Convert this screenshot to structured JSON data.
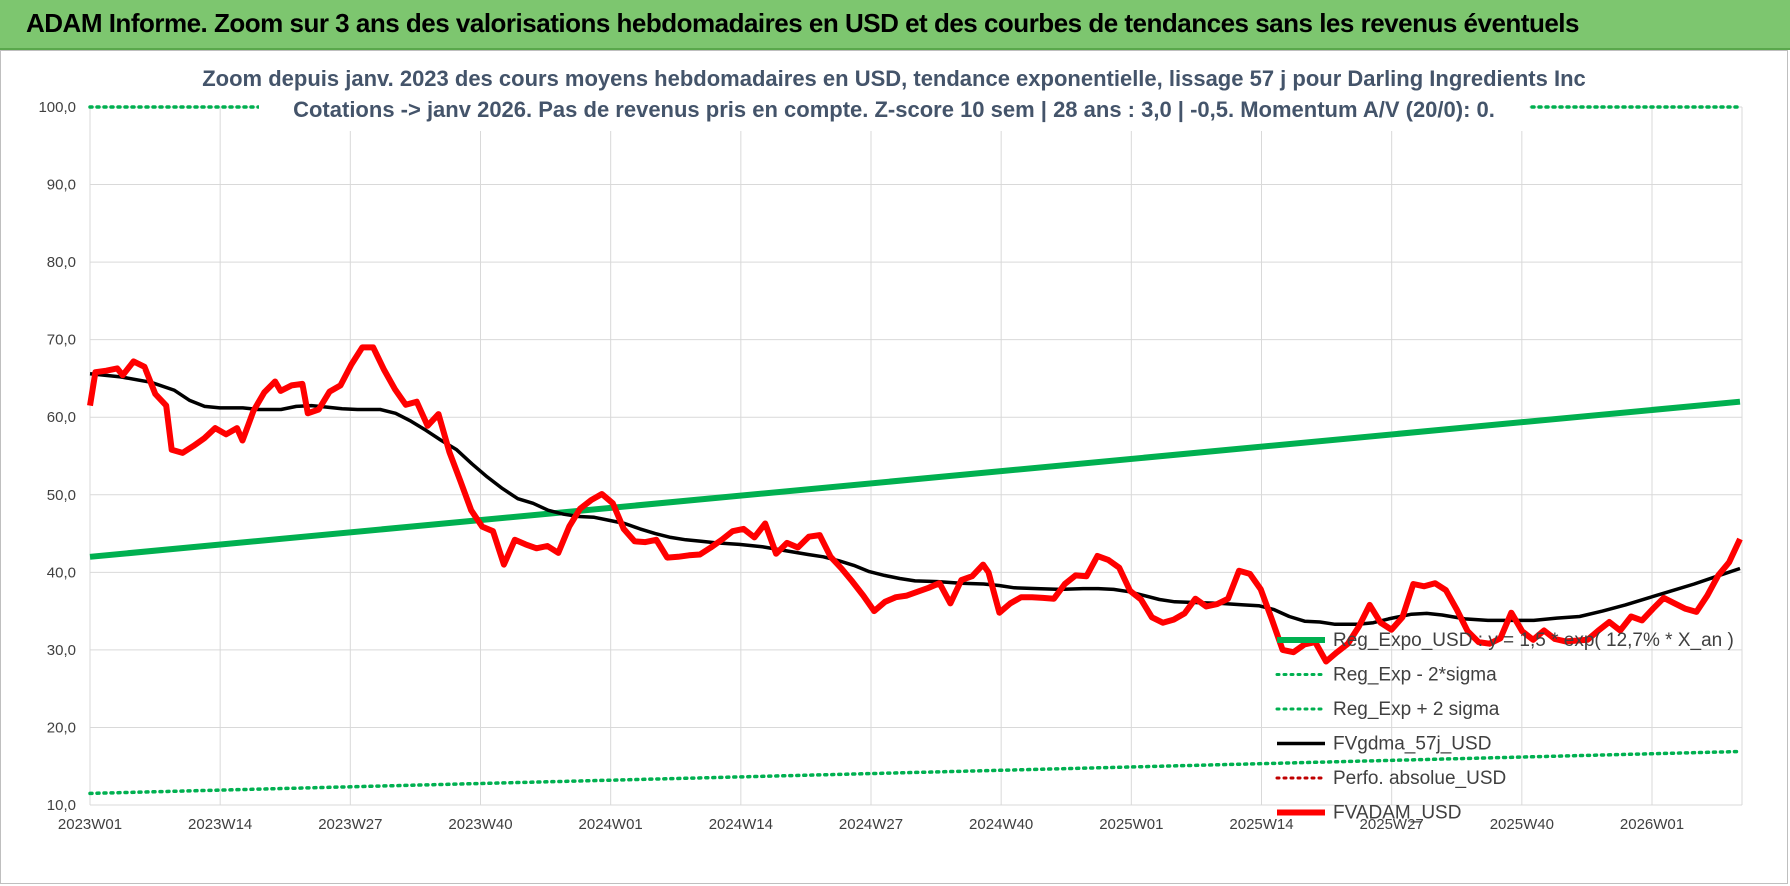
{
  "header": {
    "title": "ADAM Informe. Zoom sur 3 ans des valorisations hebdomadaires en USD et des courbes de tendances sans les revenus éventuels"
  },
  "chart_data": {
    "type": "line",
    "title": "Zoom depuis janv. 2023 des cours moyens hebdomadaires en USD, tendance exponentielle, lissage 57 j pour Darling Ingredients Inc",
    "subtitle": "Cotations -> janv 2026. Pas de revenus pris en compte. Z-score 10 sem | 28 ans : 3,0 | -0,5. Momentum A/V (20/0): 0.",
    "xlabel": "",
    "ylabel": "",
    "ylim": [
      10,
      100
    ],
    "yticks": [
      "100,0",
      "90,0",
      "80,0",
      "70,0",
      "60,0",
      "50,0",
      "40,0",
      "30,0",
      "20,0",
      "10,0"
    ],
    "xticks": [
      "2023W01",
      "2023W14",
      "2023W27",
      "2023W40",
      "2024W01",
      "2024W14",
      "2024W27",
      "2024W40",
      "2025W01",
      "2025W14",
      "2025W27",
      "2025W40",
      "2026W01"
    ],
    "grid": true,
    "legend_position": "bottom-right",
    "n_weeks": 162,
    "series": [
      {
        "name": "Reg_Expo_USD : y = 1,5 * exp( 12,7% * X_an )",
        "color": "#00b050",
        "style": "solid-thick",
        "points": [
          [
            0,
            42.0
          ],
          [
            161,
            62.0
          ]
        ]
      },
      {
        "name": "Reg_Exp - 2*sigma",
        "color": "#00b050",
        "style": "dotted",
        "points": [
          [
            0,
            11.5
          ],
          [
            161,
            16.9
          ]
        ]
      },
      {
        "name": "Reg_Exp + 2 sigma",
        "color": "#00b050",
        "style": "dotted",
        "points": [
          [
            0,
            100.0
          ],
          [
            161,
            100.0
          ]
        ]
      },
      {
        "name": "FVgdma_57j_USD",
        "color": "#000000",
        "style": "solid",
        "points": [
          [
            0,
            65.6
          ],
          [
            4,
            65.2
          ],
          [
            8,
            64.5
          ],
          [
            11,
            63.5
          ],
          [
            13,
            62.2
          ],
          [
            15,
            61.4
          ],
          [
            17,
            61.2
          ],
          [
            20,
            61.2
          ],
          [
            22,
            61.0
          ],
          [
            25,
            61.0
          ],
          [
            27,
            61.4
          ],
          [
            29,
            61.5
          ],
          [
            31,
            61.3
          ],
          [
            33,
            61.1
          ],
          [
            35,
            61.0
          ],
          [
            38,
            61.0
          ],
          [
            40,
            60.5
          ],
          [
            42,
            59.5
          ],
          [
            44,
            58.3
          ],
          [
            46,
            57.0
          ],
          [
            48,
            55.8
          ],
          [
            50,
            54.0
          ],
          [
            52,
            52.3
          ],
          [
            54,
            50.8
          ],
          [
            56,
            49.5
          ],
          [
            58,
            48.9
          ],
          [
            60,
            48.0
          ],
          [
            62,
            47.5
          ],
          [
            64,
            47.2
          ],
          [
            66,
            47.1
          ],
          [
            68,
            46.7
          ],
          [
            70,
            46.3
          ],
          [
            72,
            45.6
          ],
          [
            74,
            45.0
          ],
          [
            76,
            44.5
          ],
          [
            78,
            44.2
          ],
          [
            80,
            44.0
          ],
          [
            82,
            43.8
          ],
          [
            85,
            43.6
          ],
          [
            88,
            43.3
          ],
          [
            91,
            42.8
          ],
          [
            94,
            42.3
          ],
          [
            96,
            42.0
          ],
          [
            98,
            41.5
          ],
          [
            100,
            40.9
          ],
          [
            102,
            40.1
          ],
          [
            104,
            39.6
          ],
          [
            106,
            39.2
          ],
          [
            108,
            38.9
          ],
          [
            111,
            38.8
          ],
          [
            114,
            38.6
          ],
          [
            117,
            38.5
          ],
          [
            119,
            38.3
          ],
          [
            121,
            38.0
          ],
          [
            124,
            37.9
          ],
          [
            127,
            37.8
          ],
          [
            130,
            37.9
          ],
          [
            132,
            37.9
          ],
          [
            134,
            37.8
          ],
          [
            136,
            37.5
          ],
          [
            138,
            37.0
          ],
          [
            140,
            36.5
          ],
          [
            142,
            36.2
          ],
          [
            145,
            36.1
          ],
          [
            148,
            36.0
          ],
          [
            151,
            35.8
          ],
          [
            153,
            35.7
          ],
          [
            155,
            35.2
          ],
          [
            157,
            34.3
          ],
          [
            159,
            33.7
          ],
          [
            161,
            33.6
          ],
          [
            163,
            33.3
          ],
          [
            166,
            33.3
          ],
          [
            168,
            33.5
          ],
          [
            170,
            34.0
          ],
          [
            173,
            34.6
          ],
          [
            175,
            34.7
          ],
          [
            177,
            34.5
          ],
          [
            180,
            34.0
          ],
          [
            183,
            33.8
          ],
          [
            186,
            33.8
          ],
          [
            189,
            33.8
          ],
          [
            192,
            34.1
          ],
          [
            195,
            34.3
          ],
          [
            198,
            35.0
          ],
          [
            201,
            35.8
          ],
          [
            204,
            36.7
          ],
          [
            207,
            37.6
          ],
          [
            210,
            38.5
          ],
          [
            213,
            39.5
          ],
          [
            216,
            40.5
          ]
        ]
      },
      {
        "name": "Perfo. absolue_USD",
        "color": "#c00000",
        "style": "dotted",
        "points": []
      },
      {
        "name": "FVADAM_USD",
        "color": "#ff0000",
        "style": "solid-thick",
        "points": [
          [
            0,
            61.5
          ],
          [
            1,
            65.8
          ],
          [
            3,
            66.0
          ],
          [
            5,
            66.3
          ],
          [
            6,
            65.4
          ],
          [
            8,
            67.2
          ],
          [
            10,
            66.5
          ],
          [
            12,
            63.0
          ],
          [
            14,
            61.5
          ],
          [
            15,
            55.8
          ],
          [
            17,
            55.4
          ],
          [
            19,
            56.3
          ],
          [
            21,
            57.3
          ],
          [
            23,
            58.6
          ],
          [
            25,
            57.8
          ],
          [
            27,
            58.6
          ],
          [
            28,
            57.0
          ],
          [
            30,
            60.8
          ],
          [
            32,
            63.2
          ],
          [
            34,
            64.6
          ],
          [
            35,
            63.4
          ],
          [
            37,
            64.1
          ],
          [
            39,
            64.3
          ],
          [
            40,
            60.5
          ],
          [
            42,
            61.0
          ],
          [
            44,
            63.3
          ],
          [
            46,
            64.1
          ],
          [
            48,
            66.8
          ],
          [
            50,
            69.0
          ],
          [
            52,
            69.0
          ],
          [
            54,
            66.1
          ],
          [
            56,
            63.6
          ],
          [
            58,
            61.6
          ],
          [
            60,
            62.0
          ],
          [
            62,
            58.9
          ],
          [
            64,
            60.4
          ],
          [
            66,
            55.5
          ],
          [
            68,
            51.8
          ],
          [
            70,
            48.0
          ],
          [
            72,
            45.9
          ],
          [
            74,
            45.3
          ],
          [
            76,
            41.0
          ],
          [
            78,
            44.2
          ],
          [
            80,
            43.6
          ],
          [
            82,
            43.1
          ],
          [
            84,
            43.4
          ],
          [
            86,
            42.5
          ],
          [
            88,
            45.9
          ],
          [
            90,
            48.2
          ],
          [
            92,
            49.3
          ],
          [
            94,
            50.1
          ],
          [
            96,
            48.9
          ],
          [
            98,
            45.6
          ],
          [
            100,
            44.0
          ],
          [
            102,
            43.9
          ],
          [
            104,
            44.2
          ],
          [
            106,
            41.9
          ],
          [
            108,
            42.0
          ],
          [
            110,
            42.2
          ],
          [
            112,
            42.3
          ],
          [
            114,
            43.2
          ],
          [
            116,
            44.2
          ],
          [
            118,
            45.3
          ],
          [
            120,
            45.6
          ],
          [
            122,
            44.5
          ],
          [
            124,
            46.3
          ],
          [
            126,
            42.4
          ],
          [
            128,
            43.8
          ],
          [
            130,
            43.2
          ],
          [
            132,
            44.6
          ],
          [
            134,
            44.8
          ],
          [
            136,
            42.0
          ],
          [
            138,
            40.5
          ],
          [
            140,
            38.8
          ],
          [
            142,
            37.0
          ],
          [
            144,
            35.0
          ],
          [
            146,
            36.2
          ],
          [
            148,
            36.8
          ],
          [
            150,
            37.0
          ],
          [
            152,
            37.5
          ],
          [
            154,
            38.0
          ],
          [
            156,
            38.6
          ],
          [
            158,
            36.0
          ],
          [
            160,
            39.0
          ],
          [
            162,
            39.5
          ],
          [
            164,
            41.0
          ],
          [
            165,
            40.0
          ],
          [
            167,
            34.8
          ],
          [
            169,
            36.0
          ],
          [
            171,
            36.8
          ],
          [
            173,
            36.8
          ],
          [
            175,
            36.7
          ],
          [
            177,
            36.6
          ],
          [
            179,
            38.5
          ],
          [
            181,
            39.6
          ],
          [
            183,
            39.5
          ],
          [
            185,
            42.1
          ],
          [
            187,
            41.6
          ],
          [
            189,
            40.6
          ],
          [
            191,
            37.6
          ],
          [
            193,
            36.5
          ],
          [
            195,
            34.2
          ],
          [
            197,
            33.5
          ],
          [
            199,
            33.9
          ],
          [
            201,
            34.7
          ],
          [
            203,
            36.6
          ],
          [
            205,
            35.6
          ],
          [
            207,
            35.9
          ],
          [
            209,
            36.6
          ],
          [
            211,
            40.2
          ],
          [
            213,
            39.8
          ],
          [
            215,
            37.8
          ],
          [
            217,
            34.0
          ],
          [
            219,
            30.0
          ],
          [
            221,
            29.7
          ],
          [
            223,
            30.7
          ],
          [
            225,
            31.0
          ],
          [
            227,
            28.5
          ],
          [
            229,
            29.7
          ],
          [
            231,
            30.8
          ],
          [
            233,
            33.0
          ],
          [
            235,
            35.8
          ],
          [
            237,
            33.5
          ],
          [
            239,
            32.6
          ],
          [
            241,
            34.2
          ],
          [
            243,
            38.5
          ],
          [
            245,
            38.2
          ],
          [
            247,
            38.6
          ],
          [
            249,
            37.7
          ],
          [
            251,
            35.2
          ],
          [
            253,
            32.4
          ],
          [
            255,
            31.0
          ],
          [
            257,
            30.8
          ],
          [
            259,
            31.5
          ],
          [
            261,
            34.8
          ],
          [
            263,
            32.4
          ],
          [
            265,
            31.3
          ],
          [
            267,
            32.5
          ],
          [
            269,
            31.4
          ],
          [
            271,
            31.1
          ],
          [
            273,
            31.2
          ],
          [
            275,
            31.3
          ],
          [
            277,
            32.5
          ],
          [
            279,
            33.6
          ],
          [
            281,
            32.5
          ],
          [
            283,
            34.3
          ],
          [
            285,
            33.8
          ],
          [
            287,
            35.3
          ],
          [
            289,
            36.7
          ],
          [
            291,
            36.0
          ],
          [
            293,
            35.3
          ],
          [
            295,
            34.9
          ],
          [
            297,
            37.0
          ],
          [
            299,
            39.6
          ],
          [
            301,
            41.3
          ],
          [
            303,
            44.3
          ]
        ]
      }
    ]
  }
}
